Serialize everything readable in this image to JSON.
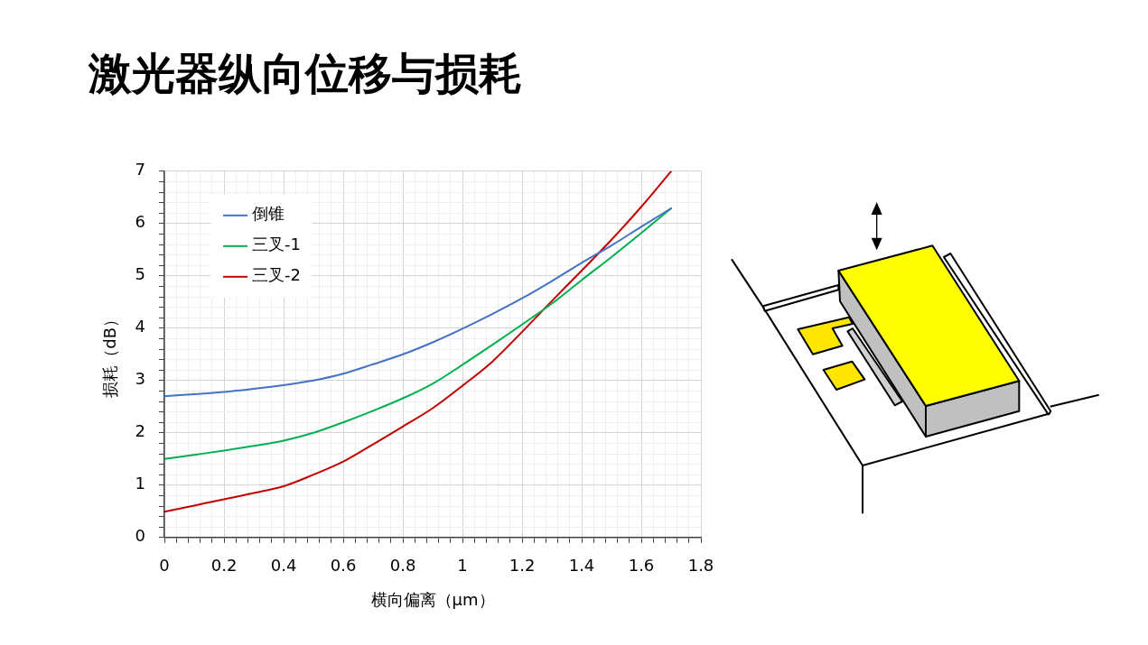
{
  "chart_data": {
    "type": "line",
    "title": "激光器纵向位移与损耗",
    "xlabel": "横向偏离（μm）",
    "ylabel": "损耗（dB）",
    "x": [
      0,
      0.1,
      0.2,
      0.3,
      0.4,
      0.5,
      0.6,
      0.7,
      0.8,
      0.9,
      1.0,
      1.1,
      1.2,
      1.3,
      1.4,
      1.5,
      1.6,
      1.7
    ],
    "series": [
      {
        "name": "倒锥",
        "color": "#4472c4",
        "values": [
          2.7,
          2.74,
          2.78,
          2.84,
          2.91,
          3.0,
          3.13,
          3.31,
          3.5,
          3.73,
          3.99,
          4.27,
          4.57,
          4.9,
          5.25,
          5.58,
          5.94,
          6.29
        ]
      },
      {
        "name": "三叉-1",
        "color": "#00b050",
        "values": [
          1.5,
          1.58,
          1.66,
          1.75,
          1.85,
          2.0,
          2.2,
          2.42,
          2.66,
          2.94,
          3.3,
          3.68,
          4.07,
          4.47,
          4.92,
          5.36,
          5.82,
          6.29
        ]
      },
      {
        "name": "三叉-2",
        "color": "#c00000",
        "values": [
          0.49,
          0.61,
          0.73,
          0.85,
          0.98,
          1.2,
          1.45,
          1.78,
          2.12,
          2.47,
          2.9,
          3.36,
          3.93,
          4.52,
          5.1,
          5.69,
          6.32,
          7.0
        ]
      }
    ],
    "xlim": [
      0,
      1.8
    ],
    "xticks": [
      0,
      {
        "value": 0.04,
        "label": null
      },
      {
        "value": 0.08,
        "label": null
      },
      {
        "value": 0.12,
        "label": null
      },
      {
        "value": 0.16,
        "label": null
      },
      0.2,
      {
        "value": 0.24,
        "label": null
      },
      {
        "value": 0.28,
        "label": null
      },
      {
        "value": 0.32,
        "label": null
      },
      {
        "value": 0.36,
        "label": null
      },
      0.4,
      {
        "value": 0.44,
        "label": null
      },
      {
        "value": 0.48,
        "label": null
      },
      {
        "value": 0.52,
        "label": null
      },
      {
        "value": 0.56,
        "label": null
      },
      0.6,
      {
        "value": 0.64,
        "label": null
      },
      {
        "value": 0.68,
        "label": null
      },
      {
        "value": 0.72,
        "label": null
      },
      {
        "value": 0.76,
        "label": null
      },
      0.8,
      {
        "value": 0.84,
        "label": null
      },
      {
        "value": 0.88,
        "label": null
      },
      {
        "value": 0.92,
        "label": null
      },
      {
        "value": 0.96,
        "label": null
      },
      1,
      {
        "value": 1.04,
        "label": null
      },
      {
        "value": 1.08,
        "label": null
      },
      {
        "value": 1.12,
        "label": null
      },
      {
        "value": 1.16,
        "label": null
      },
      1.2,
      {
        "value": 1.24,
        "label": null
      },
      {
        "value": 1.28,
        "label": null
      },
      {
        "value": 1.32,
        "label": null
      },
      {
        "value": 1.36,
        "label": null
      },
      1.4,
      {
        "value": 1.44,
        "label": null
      },
      {
        "value": 1.48,
        "label": null
      },
      {
        "value": 1.52,
        "label": null
      },
      {
        "value": 1.56,
        "label": null
      },
      1.6,
      {
        "value": 1.64,
        "label": null
      },
      {
        "value": 1.68,
        "label": null
      },
      {
        "value": 1.72,
        "label": null
      },
      {
        "value": 1.76,
        "label": null
      },
      1.8
    ],
    "ylim": [
      0,
      7
    ],
    "yticks": [
      0,
      {
        "value": 0.2,
        "label": null
      },
      {
        "value": 0.4,
        "label": null
      },
      {
        "value": 0.6,
        "label": null
      },
      {
        "value": 0.8,
        "label": null
      },
      1,
      {
        "value": 1.2,
        "label": null
      },
      {
        "value": 1.4,
        "label": null
      },
      {
        "value": 1.6,
        "label": null
      },
      {
        "value": 1.8,
        "label": null
      },
      2,
      {
        "value": 2.2,
        "label": null
      },
      {
        "value": 2.4,
        "label": null
      },
      {
        "value": 2.6,
        "label": null
      },
      {
        "value": 2.8,
        "label": null
      },
      3,
      {
        "value": 3.2,
        "label": null
      },
      {
        "value": 3.4,
        "label": null
      },
      {
        "value": 3.6,
        "label": null
      },
      {
        "value": 3.8,
        "label": null
      },
      4,
      {
        "value": 4.2,
        "label": null
      },
      {
        "value": 4.4,
        "label": null
      },
      {
        "value": 4.6,
        "label": null
      },
      {
        "value": 4.8,
        "label": null
      },
      5,
      {
        "value": 5.2,
        "label": null
      },
      {
        "value": 5.4,
        "label": null
      },
      {
        "value": 5.6,
        "label": null
      },
      {
        "value": 5.8,
        "label": null
      },
      6,
      {
        "value": 6.2,
        "label": null
      },
      {
        "value": 6.4,
        "label": null
      },
      {
        "value": 6.6,
        "label": null
      },
      {
        "value": 6.8,
        "label": null
      },
      7
    ],
    "grid": true,
    "legend": "top left",
    "marker": "none"
  }
}
